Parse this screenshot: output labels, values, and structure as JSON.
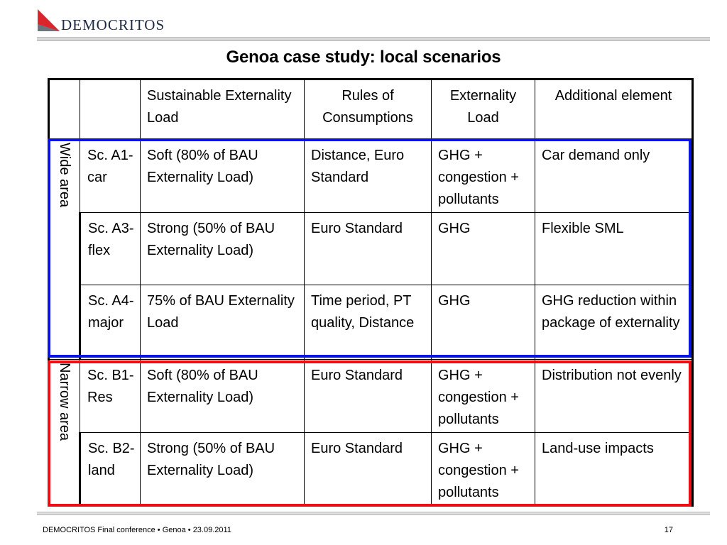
{
  "header": {
    "logo_text": "DEMOCRITOS",
    "logo_icon": "triangle-logo-icon",
    "title": "Genoa case study: local scenarios"
  },
  "colors": {
    "wide_area_frame": "#0a14e0",
    "narrow_area_frame": "#ee0d12"
  },
  "table": {
    "headers": [
      "",
      "",
      "Sustainable Externality Load",
      "Rules of Consumptions",
      "Externality Load",
      "Additional element"
    ],
    "regions": [
      {
        "label": "Wide area"
      },
      {
        "label": "Narrow area"
      }
    ],
    "rows": [
      {
        "scenario": "Sc. A1- car",
        "sel": "Soft (80% of BAU Externality Load)",
        "rules": "Distance, Euro Standard",
        "externality": "GHG + congestion + pollutants",
        "additional": "Car demand only"
      },
      {
        "scenario": "Sc. A3- flex",
        "sel": "Strong (50% of BAU Externality Load)",
        "rules": "Euro Standard",
        "externality": "GHG",
        "additional": "Flexible SML"
      },
      {
        "scenario": "Sc. A4- major",
        "sel": "75% of BAU Externality Load",
        "rules": "Time period, PT quality, Distance",
        "externality": "GHG",
        "additional": "GHG reduction within package of externality"
      },
      {
        "scenario": "Sc. B1- Res",
        "sel": "Soft (80% of BAU Externality Load)",
        "rules": "Euro Standard",
        "externality": "GHG + congestion + pollutants",
        "additional": "Distribution not evenly"
      },
      {
        "scenario": "Sc. B2- land",
        "sel": "Strong (50% of BAU Externality Load)",
        "rules": "Euro Standard",
        "externality": "GHG + congestion + pollutants",
        "additional": "Land-use impacts"
      }
    ]
  },
  "footer": {
    "text": "DEMOCRITOS Final conference • Genoa • 23.09.2011",
    "page_number": "17"
  }
}
